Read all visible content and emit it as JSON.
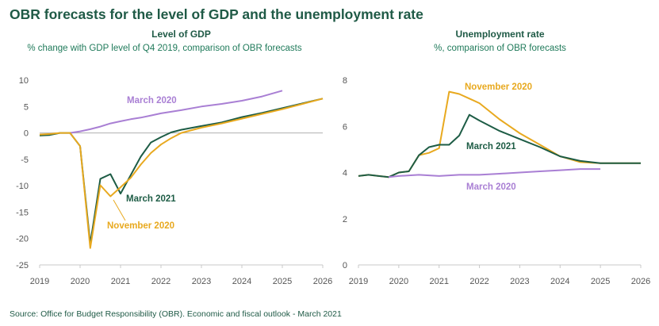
{
  "title": "OBR forecasts for the level of GDP and the unemployment rate",
  "source": "Source: Office for Budget Responsibility (OBR). Economic and fiscal outlook - March 2021",
  "colors": {
    "march_2020": "#a97fd4",
    "march_2021": "#1d5c45",
    "november_2020": "#e8a91f",
    "title": "#1f5a46",
    "axis": "#8a8a8a"
  },
  "chart_data": [
    {
      "type": "line",
      "title": "Level of GDP",
      "subtitle": "% change with GDP level of Q4 2019, comparison of OBR forecasts",
      "xlabel": "",
      "ylabel": "",
      "xlim": [
        2019,
        2026
      ],
      "ylim": [
        -25,
        10
      ],
      "xticks": [
        "2019",
        "2020",
        "2021",
        "2022",
        "2023",
        "2024",
        "2025",
        "2026"
      ],
      "yticks": [
        "10",
        "5",
        "0",
        "-5",
        "-10",
        "-15",
        "-20",
        "-25"
      ],
      "series": [
        {
          "name": "March 2020",
          "color": "#a97fd4",
          "points": [
            [
              2019.75,
              0
            ],
            [
              2020.0,
              0.3
            ],
            [
              2020.25,
              0.7
            ],
            [
              2020.5,
              1.2
            ],
            [
              2020.75,
              1.8
            ],
            [
              2021.0,
              2.2
            ],
            [
              2021.25,
              2.6
            ],
            [
              2021.5,
              2.9
            ],
            [
              2021.75,
              3.3
            ],
            [
              2022.0,
              3.7
            ],
            [
              2022.5,
              4.3
            ],
            [
              2023.0,
              5.0
            ],
            [
              2023.5,
              5.5
            ],
            [
              2024.0,
              6.1
            ],
            [
              2024.5,
              6.9
            ],
            [
              2025.0,
              8.0
            ]
          ]
        },
        {
          "name": "March 2021",
          "color": "#1d5c45",
          "points": [
            [
              2019.0,
              -0.5
            ],
            [
              2019.25,
              -0.4
            ],
            [
              2019.5,
              0
            ],
            [
              2019.75,
              0
            ],
            [
              2020.0,
              -2.5
            ],
            [
              2020.25,
              -21.0
            ],
            [
              2020.5,
              -8.7
            ],
            [
              2020.75,
              -7.8
            ],
            [
              2021.0,
              -11.5
            ],
            [
              2021.25,
              -8.0
            ],
            [
              2021.5,
              -4.5
            ],
            [
              2021.75,
              -1.8
            ],
            [
              2022.0,
              -0.8
            ],
            [
              2022.25,
              0.1
            ],
            [
              2022.5,
              0.6
            ],
            [
              2023.0,
              1.3
            ],
            [
              2023.5,
              2.0
            ],
            [
              2024.0,
              3.0
            ],
            [
              2024.5,
              3.8
            ],
            [
              2025.0,
              4.7
            ],
            [
              2025.5,
              5.6
            ],
            [
              2026.0,
              6.5
            ]
          ]
        },
        {
          "name": "November 2020",
          "color": "#e8a91f",
          "points": [
            [
              2019.0,
              -0.3
            ],
            [
              2019.25,
              -0.2
            ],
            [
              2019.5,
              0
            ],
            [
              2019.75,
              0
            ],
            [
              2020.0,
              -2.5
            ],
            [
              2020.25,
              -21.8
            ],
            [
              2020.5,
              -9.9
            ],
            [
              2020.75,
              -12.0
            ],
            [
              2021.0,
              -10.3
            ],
            [
              2021.25,
              -8.5
            ],
            [
              2021.5,
              -6.0
            ],
            [
              2021.75,
              -3.8
            ],
            [
              2022.0,
              -2.2
            ],
            [
              2022.25,
              -1.0
            ],
            [
              2022.5,
              0.0
            ],
            [
              2023.0,
              1.0
            ],
            [
              2023.5,
              1.8
            ],
            [
              2024.0,
              2.7
            ],
            [
              2024.5,
              3.6
            ],
            [
              2025.0,
              4.5
            ],
            [
              2025.5,
              5.5
            ],
            [
              2026.0,
              6.5
            ]
          ]
        }
      ],
      "annotations": [
        {
          "text": "March 2020",
          "series": "March 2020"
        },
        {
          "text": "March 2021",
          "series": "March 2021"
        },
        {
          "text": "November 2020",
          "series": "November 2020"
        }
      ],
      "grid": false,
      "legend": "inline labels"
    },
    {
      "type": "line",
      "title": "Unemployment rate",
      "subtitle": "%, comparison of OBR forecasts",
      "xlabel": "",
      "ylabel": "",
      "xlim": [
        2019,
        2026
      ],
      "ylim": [
        0,
        8
      ],
      "xticks": [
        "2019",
        "2020",
        "2021",
        "2022",
        "2023",
        "2024",
        "2025",
        "2026"
      ],
      "yticks": [
        "8",
        "6",
        "4",
        "2",
        "0"
      ],
      "series": [
        {
          "name": "November 2020",
          "color": "#e8a91f",
          "points": [
            [
              2019.0,
              3.85
            ],
            [
              2019.25,
              3.9
            ],
            [
              2019.5,
              3.85
            ],
            [
              2019.75,
              3.8
            ],
            [
              2020.0,
              4.0
            ],
            [
              2020.25,
              4.05
            ],
            [
              2020.5,
              4.75
            ],
            [
              2020.75,
              4.85
            ],
            [
              2021.0,
              5.05
            ],
            [
              2021.25,
              7.5
            ],
            [
              2021.5,
              7.4
            ],
            [
              2021.75,
              7.2
            ],
            [
              2022.0,
              7.0
            ],
            [
              2022.5,
              6.3
            ],
            [
              2023.0,
              5.7
            ],
            [
              2023.5,
              5.2
            ],
            [
              2024.0,
              4.7
            ],
            [
              2024.5,
              4.45
            ],
            [
              2025.0,
              4.4
            ],
            [
              2025.5,
              4.4
            ],
            [
              2026.0,
              4.4
            ]
          ]
        },
        {
          "name": "March 2021",
          "color": "#1d5c45",
          "points": [
            [
              2019.0,
              3.85
            ],
            [
              2019.25,
              3.9
            ],
            [
              2019.5,
              3.85
            ],
            [
              2019.75,
              3.8
            ],
            [
              2020.0,
              4.0
            ],
            [
              2020.25,
              4.05
            ],
            [
              2020.5,
              4.75
            ],
            [
              2020.75,
              5.1
            ],
            [
              2021.0,
              5.2
            ],
            [
              2021.25,
              5.2
            ],
            [
              2021.5,
              5.6
            ],
            [
              2021.75,
              6.5
            ],
            [
              2022.0,
              6.25
            ],
            [
              2022.5,
              5.8
            ],
            [
              2023.0,
              5.45
            ],
            [
              2023.5,
              5.1
            ],
            [
              2024.0,
              4.7
            ],
            [
              2024.5,
              4.5
            ],
            [
              2025.0,
              4.4
            ],
            [
              2025.5,
              4.4
            ],
            [
              2026.0,
              4.4
            ]
          ]
        },
        {
          "name": "March 2020",
          "color": "#a97fd4",
          "points": [
            [
              2019.75,
              3.8
            ],
            [
              2020.0,
              3.85
            ],
            [
              2020.5,
              3.9
            ],
            [
              2021.0,
              3.85
            ],
            [
              2021.5,
              3.9
            ],
            [
              2022.0,
              3.9
            ],
            [
              2022.5,
              3.95
            ],
            [
              2023.0,
              4.0
            ],
            [
              2023.5,
              4.05
            ],
            [
              2024.0,
              4.1
            ],
            [
              2024.5,
              4.15
            ],
            [
              2025.0,
              4.15
            ]
          ]
        }
      ],
      "annotations": [
        {
          "text": "November 2020",
          "series": "November 2020"
        },
        {
          "text": "March 2021",
          "series": "March 2021"
        },
        {
          "text": "March 2020",
          "series": "March 2020"
        }
      ],
      "grid": false,
      "legend": "inline labels"
    }
  ]
}
